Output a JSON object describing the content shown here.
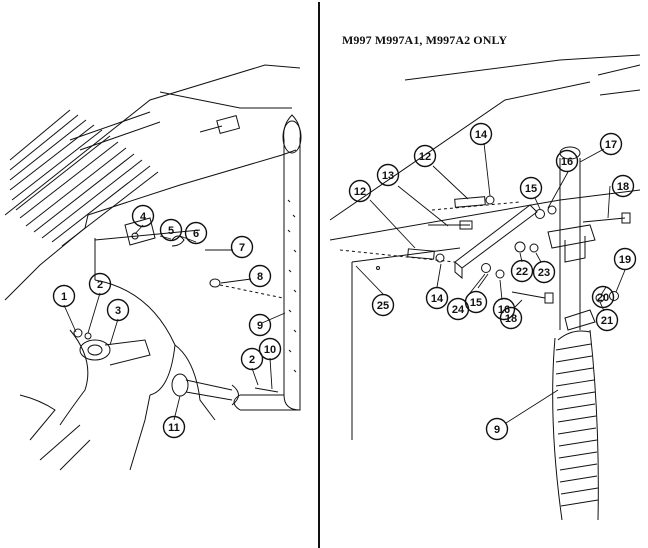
{
  "figure": {
    "right_panel_title": "M997 M997A1, M997A2 ONLY"
  },
  "left_callouts": [
    "1",
    "2",
    "3",
    "4",
    "5",
    "6",
    "7",
    "8",
    "9",
    "2",
    "10",
    "11"
  ],
  "right_callouts": [
    "12",
    "13",
    "14",
    "12",
    "16",
    "17",
    "15",
    "18",
    "14",
    "15",
    "16",
    "22",
    "23",
    "24",
    "25",
    "20",
    "19",
    "21",
    "18",
    "9"
  ]
}
